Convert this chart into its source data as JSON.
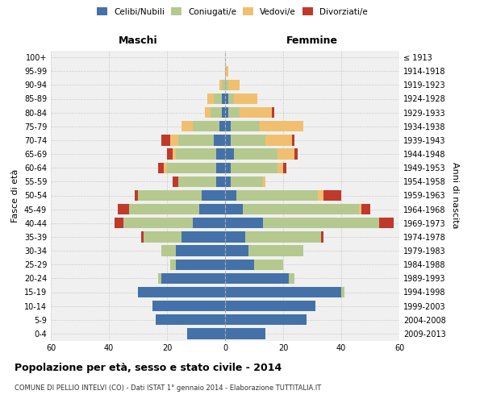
{
  "age_groups": [
    "0-4",
    "5-9",
    "10-14",
    "15-19",
    "20-24",
    "25-29",
    "30-34",
    "35-39",
    "40-44",
    "45-49",
    "50-54",
    "55-59",
    "60-64",
    "65-69",
    "70-74",
    "75-79",
    "80-84",
    "85-89",
    "90-94",
    "95-99",
    "100+"
  ],
  "birth_years": [
    "2009-2013",
    "2004-2008",
    "1999-2003",
    "1994-1998",
    "1989-1993",
    "1984-1988",
    "1979-1983",
    "1974-1978",
    "1969-1973",
    "1964-1968",
    "1959-1963",
    "1954-1958",
    "1949-1953",
    "1944-1948",
    "1939-1943",
    "1934-1938",
    "1929-1933",
    "1924-1928",
    "1919-1923",
    "1914-1918",
    "≤ 1913"
  ],
  "maschi": {
    "celibi": [
      13,
      24,
      25,
      30,
      22,
      17,
      17,
      15,
      11,
      9,
      8,
      3,
      3,
      3,
      4,
      2,
      1,
      1,
      0,
      0,
      0
    ],
    "coniugati": [
      0,
      0,
      0,
      0,
      1,
      2,
      5,
      13,
      24,
      24,
      22,
      13,
      17,
      14,
      12,
      9,
      4,
      3,
      1,
      0,
      0
    ],
    "vedovi": [
      0,
      0,
      0,
      0,
      0,
      0,
      0,
      0,
      0,
      0,
      0,
      0,
      1,
      1,
      3,
      4,
      2,
      2,
      1,
      0,
      0
    ],
    "divorziati": [
      0,
      0,
      0,
      0,
      0,
      0,
      0,
      1,
      3,
      4,
      1,
      2,
      2,
      2,
      3,
      0,
      0,
      0,
      0,
      0,
      0
    ]
  },
  "femmine": {
    "nubili": [
      14,
      28,
      31,
      40,
      22,
      10,
      8,
      7,
      13,
      6,
      4,
      2,
      2,
      3,
      2,
      2,
      1,
      1,
      0,
      0,
      0
    ],
    "coniugate": [
      0,
      0,
      0,
      1,
      2,
      10,
      19,
      26,
      40,
      40,
      28,
      11,
      16,
      15,
      12,
      10,
      4,
      2,
      1,
      0,
      0
    ],
    "vedove": [
      0,
      0,
      0,
      0,
      0,
      0,
      0,
      0,
      0,
      1,
      2,
      1,
      2,
      6,
      9,
      15,
      11,
      8,
      4,
      1,
      0
    ],
    "divorziate": [
      0,
      0,
      0,
      0,
      0,
      0,
      0,
      1,
      5,
      3,
      6,
      0,
      1,
      1,
      1,
      0,
      1,
      0,
      0,
      0,
      0
    ]
  },
  "colors": {
    "celibi_nubili": "#4472a8",
    "coniugati": "#b5c98e",
    "vedovi": "#f0c070",
    "divorziati": "#c0392b"
  },
  "xlim": 60,
  "title": "Popolazione per età, sesso e stato civile - 2014",
  "subtitle": "COMUNE DI PELLIO INTELVI (CO) - Dati ISTAT 1° gennaio 2014 - Elaborazione TUTTITALIA.IT",
  "ylabel_left": "Fasce di età",
  "ylabel_right": "Anni di nascita",
  "xlabel_left": "Maschi",
  "xlabel_right": "Femmine",
  "bg_color": "#f0f0f0",
  "grid_color": "#cccccc"
}
